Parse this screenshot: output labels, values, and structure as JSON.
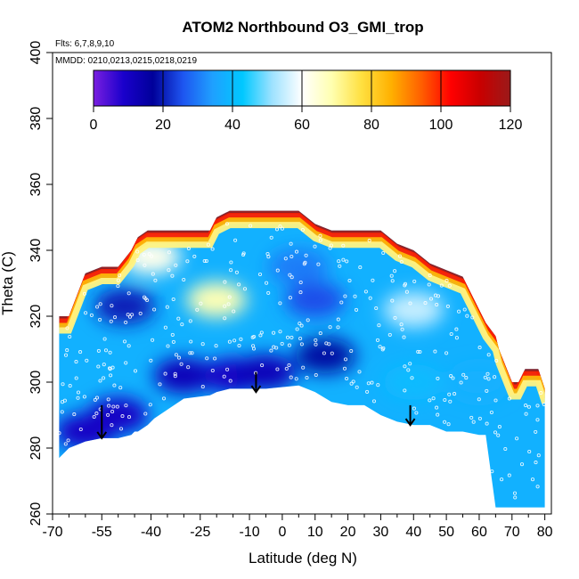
{
  "chart_data": {
    "type": "heatmap",
    "title": "ATOM2 Northbound O3_GMI_trop",
    "annotations": {
      "flights": "Flts: 6,7,8,9,10",
      "dates": "MMDD: 0210,0213,0215,0218,0219"
    },
    "xlabel": "Latitude (deg N)",
    "ylabel": "Theta (C)",
    "xlim": [
      -70,
      82
    ],
    "ylim": [
      260,
      400
    ],
    "x_major_ticks": [
      -70,
      -55,
      -40,
      -25,
      -10,
      0,
      10,
      20,
      30,
      40,
      50,
      60,
      70,
      80
    ],
    "y_ticks": [
      260,
      280,
      300,
      320,
      340,
      360,
      380,
      400
    ],
    "colorbar": {
      "min": 0,
      "max": 120,
      "ticks": [
        0,
        20,
        40,
        60,
        80,
        100,
        120
      ],
      "colors": [
        "#7a1fe0",
        "#1a00cc",
        "#00009a",
        "#1e55f0",
        "#1fa0ff",
        "#00c8ff",
        "#9ee2ff",
        "#ffffff",
        "#ffffb0",
        "#ffe040",
        "#ffb000",
        "#ff6000",
        "#ff0000",
        "#c80000",
        "#9a1a1a"
      ]
    },
    "envelope": {
      "lat": [
        -68,
        -65,
        -60,
        -55,
        -50,
        -46,
        -45,
        -44,
        -41,
        -39,
        -30,
        -22,
        -20,
        -16,
        -12,
        -5,
        5,
        10,
        15,
        20,
        25,
        30,
        35,
        40,
        45,
        50,
        55,
        60,
        62,
        65,
        66,
        70,
        72,
        74,
        78,
        80
      ],
      "top": [
        320,
        320,
        333,
        335,
        335,
        340,
        342,
        344,
        346,
        346,
        346,
        346,
        350,
        352,
        352,
        352,
        352,
        348,
        346,
        346,
        346,
        346,
        342,
        340,
        336,
        334,
        332,
        322,
        318,
        314,
        310,
        300,
        300,
        304,
        304,
        298
      ],
      "bottom": [
        277,
        280,
        282,
        283,
        283,
        284,
        285,
        285,
        287,
        289,
        295,
        296,
        297,
        298,
        298,
        298,
        299,
        297,
        294,
        293,
        293,
        290,
        288,
        287,
        287,
        285,
        285,
        284,
        284,
        262,
        262,
        262,
        262,
        262,
        262,
        262
      ]
    },
    "field_blobs": [
      {
        "lat": -60,
        "theta": 285,
        "value": 10
      },
      {
        "lat": -50,
        "theta": 290,
        "value": 10
      },
      {
        "lat": -30,
        "theta": 302,
        "value": 12
      },
      {
        "lat": -15,
        "theta": 302,
        "value": 10
      },
      {
        "lat": -5,
        "theta": 303,
        "value": 12
      },
      {
        "lat": -48,
        "theta": 323,
        "value": 20
      },
      {
        "lat": 10,
        "theta": 325,
        "value": 25
      },
      {
        "lat": 13,
        "theta": 308,
        "value": 18
      },
      {
        "lat": 5,
        "theta": 335,
        "value": 30
      },
      {
        "lat": -20,
        "theta": 325,
        "value": 68
      },
      {
        "lat": -40,
        "theta": 338,
        "value": 62
      },
      {
        "lat": 40,
        "theta": 322,
        "value": 55
      },
      {
        "lat": 60,
        "theta": 300,
        "value": 38
      },
      {
        "lat": 40,
        "theta": 300,
        "value": 40
      }
    ],
    "arrows": [
      {
        "lat": -55,
        "theta_start": 293,
        "theta_end": 283
      },
      {
        "lat": -8,
        "theta_start": 303,
        "theta_end": 297
      },
      {
        "lat": 39,
        "theta_start": 293,
        "theta_end": 287
      }
    ]
  }
}
